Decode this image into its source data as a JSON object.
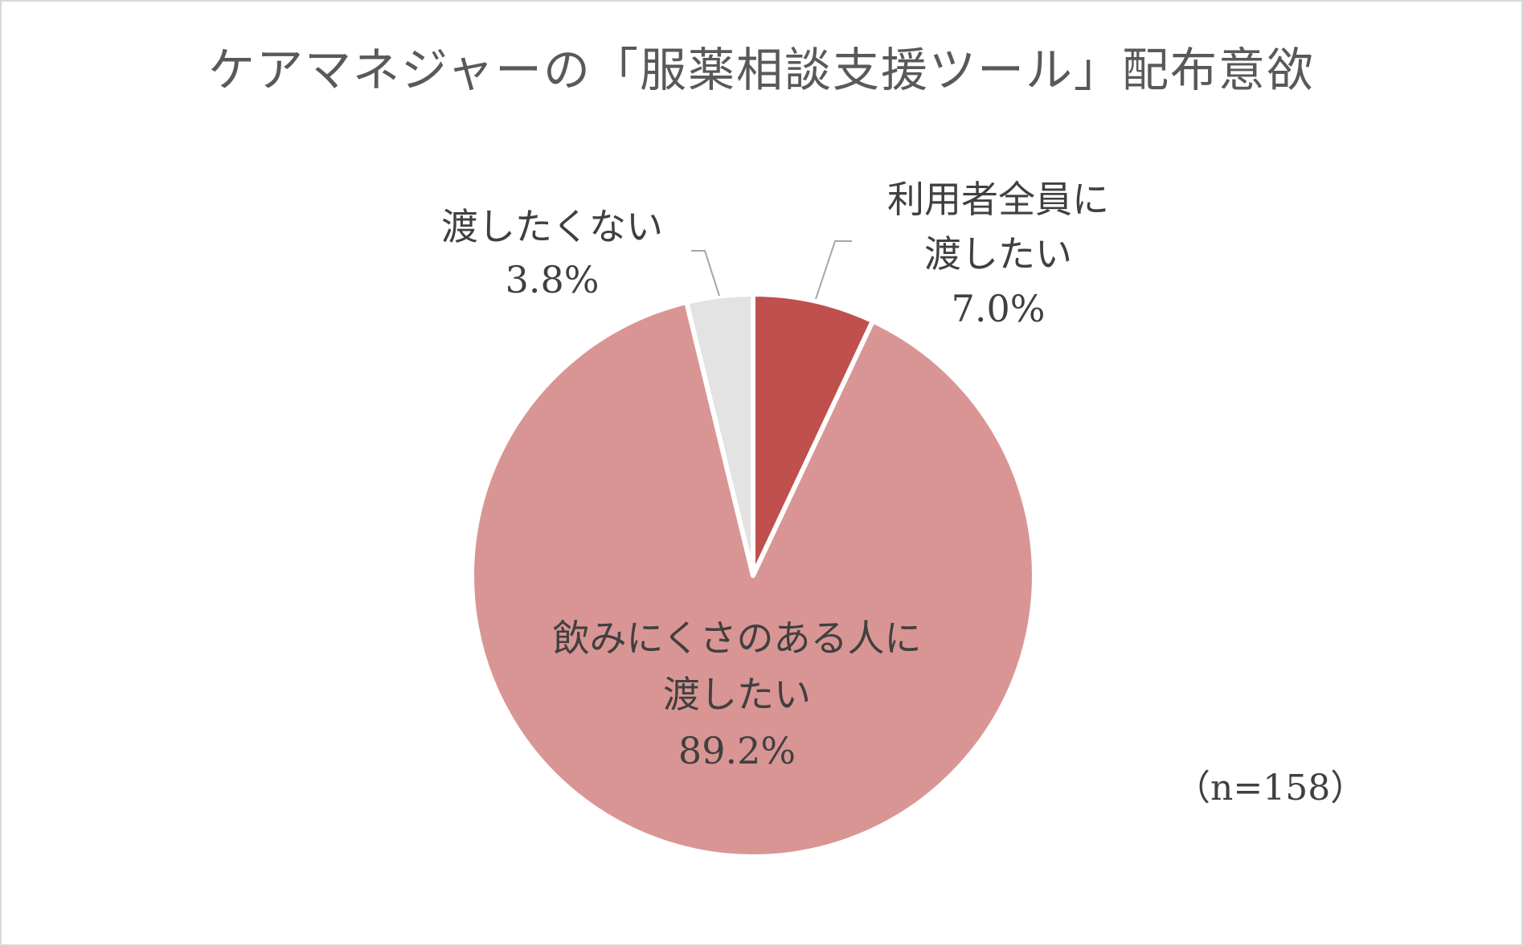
{
  "chart_data": {
    "type": "pie",
    "title": "ケアマネジャーの「服薬相談支援ツール」配布意欲",
    "note": "（n=158）",
    "slices": [
      {
        "name_lines": [
          "利用者全員に",
          "渡したい"
        ],
        "value": 7.0,
        "value_label": "7.0%",
        "color": "#c0504d"
      },
      {
        "name_lines": [
          "飲みにくさのある人に",
          "渡したい"
        ],
        "value": 89.2,
        "value_label": "89.2%",
        "color": "#d99594"
      },
      {
        "name_lines": [
          "渡したくない"
        ],
        "value": 3.8,
        "value_label": "3.8%",
        "color": "#e3e3e3"
      }
    ],
    "start_angle": "12 o'clock",
    "direction": "clockwise",
    "legend": "none"
  }
}
